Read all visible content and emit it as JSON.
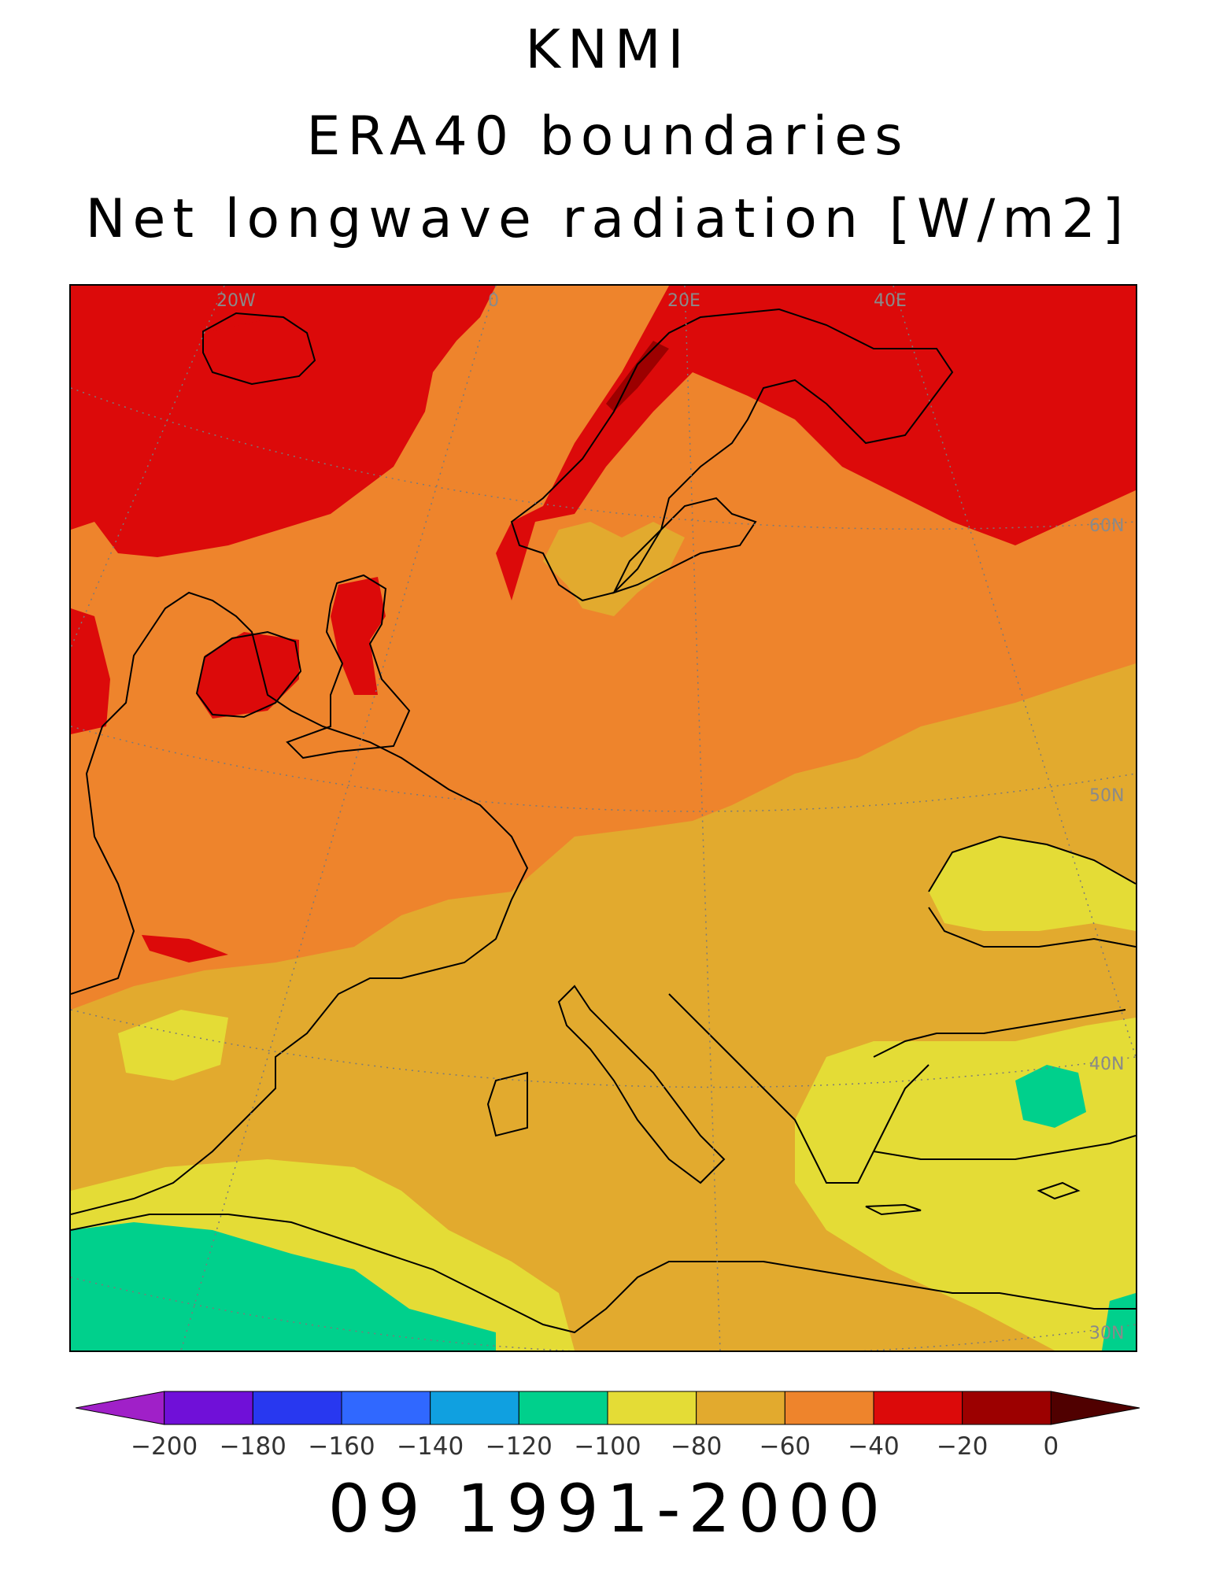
{
  "titles": {
    "line1": "KNMI",
    "line2": "ERA40 boundaries",
    "line3": "Net longwave radiation [W/m2]"
  },
  "subtitle": "09 1991-2000",
  "map": {
    "grid_labels": {
      "lon": [
        "20W",
        "0",
        "20E",
        "40E"
      ],
      "lat": [
        "60N",
        "50N",
        "40N",
        "30N"
      ]
    }
  },
  "colorbar": {
    "tick_labels": [
      "-200",
      "-180",
      "-160",
      "-140",
      "-120",
      "-100",
      "-80",
      "-60",
      "-40",
      "-20",
      "0"
    ],
    "colors": [
      "#a020c8",
      "#7010d8",
      "#2838f0",
      "#3068ff",
      "#10a0e0",
      "#00d08c",
      "#e4dc36",
      "#e2aa2e",
      "#ee842c",
      "#dc0a0a",
      "#9c0000",
      "#500000"
    ],
    "bin_edges": [
      -200,
      -180,
      -160,
      -140,
      -120,
      -100,
      -80,
      -60,
      -40,
      -20,
      0
    ],
    "extends": "both"
  },
  "legend": {
    "color_map": {
      "orange_base": "#ee842c",
      "red_north": "#dc0a0a",
      "dark_red_mountains": "#9c0000",
      "amber_mediterranean": "#e2aa2e",
      "yellow_south": "#e4dc36",
      "green_sahara": "#00d08c"
    }
  }
}
